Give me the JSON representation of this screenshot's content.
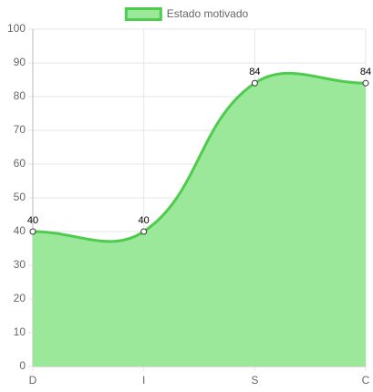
{
  "chart_data": {
    "type": "line",
    "categories": [
      "D",
      "I",
      "S",
      "C"
    ],
    "series": [
      {
        "name": "Estado motivado",
        "color": "#4dcc4d",
        "fill_color": "#9be89b",
        "values": [
          40,
          40,
          84,
          84
        ]
      }
    ],
    "ylim": [
      0,
      100
    ],
    "yticks": [
      0,
      10,
      20,
      30,
      40,
      50,
      60,
      70,
      80,
      90,
      100
    ],
    "grid": true,
    "fill": true,
    "legend": "top"
  }
}
